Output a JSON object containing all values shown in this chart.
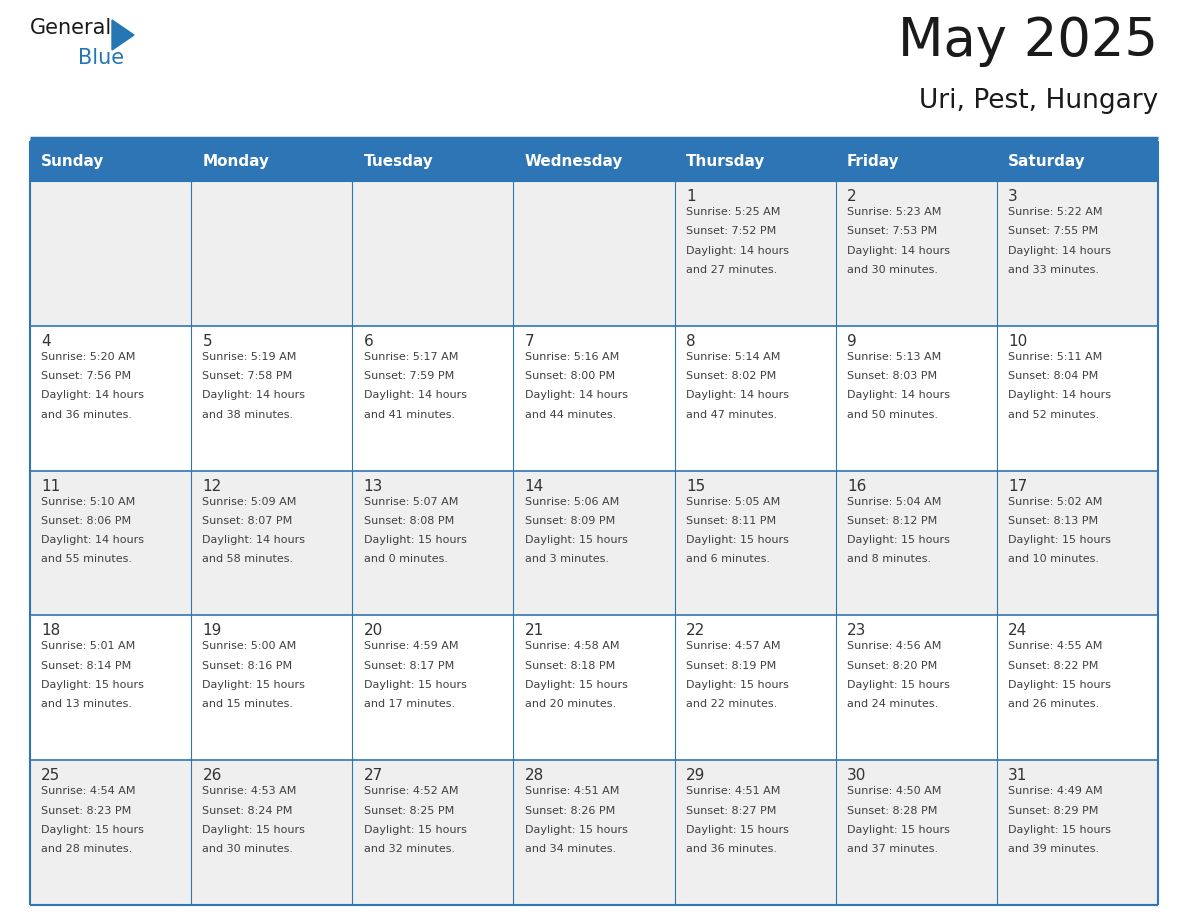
{
  "title": "May 2025",
  "subtitle": "Uri, Pest, Hungary",
  "header_bg": "#2E75B6",
  "header_text_color": "#FFFFFF",
  "day_names": [
    "Sunday",
    "Monday",
    "Tuesday",
    "Wednesday",
    "Thursday",
    "Friday",
    "Saturday"
  ],
  "cell_bg_row0": "#EFEFEF",
  "cell_bg_row1": "#FFFFFF",
  "cell_bg_row2": "#EFEFEF",
  "cell_bg_row3": "#FFFFFF",
  "cell_bg_row4": "#EFEFEF",
  "text_color": "#404040",
  "day_num_color": "#333333",
  "title_color": "#1a1a1a",
  "logo_general_color": "#1a1a1a",
  "logo_blue_color": "#2477B3",
  "calendar": [
    [
      {
        "day": "",
        "info": ""
      },
      {
        "day": "",
        "info": ""
      },
      {
        "day": "",
        "info": ""
      },
      {
        "day": "",
        "info": ""
      },
      {
        "day": "1",
        "info": "Sunrise: 5:25 AM\nSunset: 7:52 PM\nDaylight: 14 hours\nand 27 minutes."
      },
      {
        "day": "2",
        "info": "Sunrise: 5:23 AM\nSunset: 7:53 PM\nDaylight: 14 hours\nand 30 minutes."
      },
      {
        "day": "3",
        "info": "Sunrise: 5:22 AM\nSunset: 7:55 PM\nDaylight: 14 hours\nand 33 minutes."
      }
    ],
    [
      {
        "day": "4",
        "info": "Sunrise: 5:20 AM\nSunset: 7:56 PM\nDaylight: 14 hours\nand 36 minutes."
      },
      {
        "day": "5",
        "info": "Sunrise: 5:19 AM\nSunset: 7:58 PM\nDaylight: 14 hours\nand 38 minutes."
      },
      {
        "day": "6",
        "info": "Sunrise: 5:17 AM\nSunset: 7:59 PM\nDaylight: 14 hours\nand 41 minutes."
      },
      {
        "day": "7",
        "info": "Sunrise: 5:16 AM\nSunset: 8:00 PM\nDaylight: 14 hours\nand 44 minutes."
      },
      {
        "day": "8",
        "info": "Sunrise: 5:14 AM\nSunset: 8:02 PM\nDaylight: 14 hours\nand 47 minutes."
      },
      {
        "day": "9",
        "info": "Sunrise: 5:13 AM\nSunset: 8:03 PM\nDaylight: 14 hours\nand 50 minutes."
      },
      {
        "day": "10",
        "info": "Sunrise: 5:11 AM\nSunset: 8:04 PM\nDaylight: 14 hours\nand 52 minutes."
      }
    ],
    [
      {
        "day": "11",
        "info": "Sunrise: 5:10 AM\nSunset: 8:06 PM\nDaylight: 14 hours\nand 55 minutes."
      },
      {
        "day": "12",
        "info": "Sunrise: 5:09 AM\nSunset: 8:07 PM\nDaylight: 14 hours\nand 58 minutes."
      },
      {
        "day": "13",
        "info": "Sunrise: 5:07 AM\nSunset: 8:08 PM\nDaylight: 15 hours\nand 0 minutes."
      },
      {
        "day": "14",
        "info": "Sunrise: 5:06 AM\nSunset: 8:09 PM\nDaylight: 15 hours\nand 3 minutes."
      },
      {
        "day": "15",
        "info": "Sunrise: 5:05 AM\nSunset: 8:11 PM\nDaylight: 15 hours\nand 6 minutes."
      },
      {
        "day": "16",
        "info": "Sunrise: 5:04 AM\nSunset: 8:12 PM\nDaylight: 15 hours\nand 8 minutes."
      },
      {
        "day": "17",
        "info": "Sunrise: 5:02 AM\nSunset: 8:13 PM\nDaylight: 15 hours\nand 10 minutes."
      }
    ],
    [
      {
        "day": "18",
        "info": "Sunrise: 5:01 AM\nSunset: 8:14 PM\nDaylight: 15 hours\nand 13 minutes."
      },
      {
        "day": "19",
        "info": "Sunrise: 5:00 AM\nSunset: 8:16 PM\nDaylight: 15 hours\nand 15 minutes."
      },
      {
        "day": "20",
        "info": "Sunrise: 4:59 AM\nSunset: 8:17 PM\nDaylight: 15 hours\nand 17 minutes."
      },
      {
        "day": "21",
        "info": "Sunrise: 4:58 AM\nSunset: 8:18 PM\nDaylight: 15 hours\nand 20 minutes."
      },
      {
        "day": "22",
        "info": "Sunrise: 4:57 AM\nSunset: 8:19 PM\nDaylight: 15 hours\nand 22 minutes."
      },
      {
        "day": "23",
        "info": "Sunrise: 4:56 AM\nSunset: 8:20 PM\nDaylight: 15 hours\nand 24 minutes."
      },
      {
        "day": "24",
        "info": "Sunrise: 4:55 AM\nSunset: 8:22 PM\nDaylight: 15 hours\nand 26 minutes."
      }
    ],
    [
      {
        "day": "25",
        "info": "Sunrise: 4:54 AM\nSunset: 8:23 PM\nDaylight: 15 hours\nand 28 minutes."
      },
      {
        "day": "26",
        "info": "Sunrise: 4:53 AM\nSunset: 8:24 PM\nDaylight: 15 hours\nand 30 minutes."
      },
      {
        "day": "27",
        "info": "Sunrise: 4:52 AM\nSunset: 8:25 PM\nDaylight: 15 hours\nand 32 minutes."
      },
      {
        "day": "28",
        "info": "Sunrise: 4:51 AM\nSunset: 8:26 PM\nDaylight: 15 hours\nand 34 minutes."
      },
      {
        "day": "29",
        "info": "Sunrise: 4:51 AM\nSunset: 8:27 PM\nDaylight: 15 hours\nand 36 minutes."
      },
      {
        "day": "30",
        "info": "Sunrise: 4:50 AM\nSunset: 8:28 PM\nDaylight: 15 hours\nand 37 minutes."
      },
      {
        "day": "31",
        "info": "Sunrise: 4:49 AM\nSunset: 8:29 PM\nDaylight: 15 hours\nand 39 minutes."
      }
    ]
  ]
}
